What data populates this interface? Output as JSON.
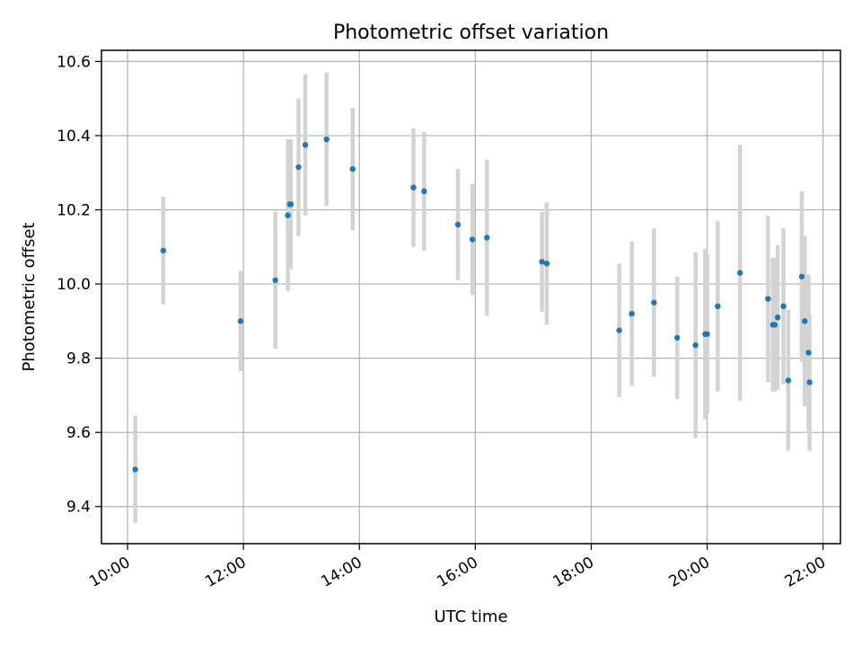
{
  "chart_data": {
    "type": "scatter",
    "title": "Photometric offset variation",
    "xlabel": "UTC time",
    "ylabel": "Photometric offset",
    "x_ticks": [
      "10:00",
      "12:00",
      "14:00",
      "16:00",
      "18:00",
      "20:00",
      "22:00"
    ],
    "y_ticks": [
      "9.4",
      "9.6",
      "9.8",
      "10.0",
      "10.2",
      "10.4",
      "10.6"
    ],
    "xlim": [
      "09:33",
      "22:18"
    ],
    "ylim": [
      9.3,
      10.63
    ],
    "grid": true,
    "legend": "none",
    "colors": {
      "points": "#1f77b4",
      "errorbars": "#d3d3d3",
      "grid": "#b0b0b0"
    },
    "points": [
      {
        "x": "10:08",
        "y": 9.5,
        "yerr": 0.145
      },
      {
        "x": "10:37",
        "y": 10.09,
        "yerr": 0.145
      },
      {
        "x": "11:57",
        "y": 9.9,
        "yerr": 0.135
      },
      {
        "x": "12:33",
        "y": 10.01,
        "yerr": 0.185
      },
      {
        "x": "12:46",
        "y": 10.185,
        "yerr": 0.205
      },
      {
        "x": "12:48",
        "y": 10.215,
        "yerr": 0.175
      },
      {
        "x": "12:49",
        "y": 10.215,
        "yerr": 0.175
      },
      {
        "x": "12:57",
        "y": 10.315,
        "yerr": 0.185
      },
      {
        "x": "13:04",
        "y": 10.375,
        "yerr": 0.19
      },
      {
        "x": "13:26",
        "y": 10.39,
        "yerr": 0.18
      },
      {
        "x": "13:53",
        "y": 10.31,
        "yerr": 0.165
      },
      {
        "x": "14:56",
        "y": 10.26,
        "yerr": 0.16
      },
      {
        "x": "15:07",
        "y": 10.25,
        "yerr": 0.16
      },
      {
        "x": "15:42",
        "y": 10.16,
        "yerr": 0.15
      },
      {
        "x": "15:57",
        "y": 10.12,
        "yerr": 0.15
      },
      {
        "x": "16:12",
        "y": 10.125,
        "yerr": 0.21
      },
      {
        "x": "17:09",
        "y": 10.06,
        "yerr": 0.135
      },
      {
        "x": "17:14",
        "y": 10.055,
        "yerr": 0.165
      },
      {
        "x": "18:29",
        "y": 9.875,
        "yerr": 0.18
      },
      {
        "x": "18:42",
        "y": 9.92,
        "yerr": 0.195
      },
      {
        "x": "19:05",
        "y": 9.95,
        "yerr": 0.2
      },
      {
        "x": "19:29",
        "y": 9.855,
        "yerr": 0.165
      },
      {
        "x": "19:48",
        "y": 9.835,
        "yerr": 0.25
      },
      {
        "x": "19:58",
        "y": 9.865,
        "yerr": 0.23
      },
      {
        "x": "20:00",
        "y": 9.865,
        "yerr": 0.215
      },
      {
        "x": "20:11",
        "y": 9.94,
        "yerr": 0.23
      },
      {
        "x": "20:34",
        "y": 10.03,
        "yerr": 0.345
      },
      {
        "x": "21:03",
        "y": 9.96,
        "yerr": 0.225
      },
      {
        "x": "21:08",
        "y": 9.89,
        "yerr": 0.18
      },
      {
        "x": "21:10",
        "y": 9.89,
        "yerr": 0.18
      },
      {
        "x": "21:13",
        "y": 9.91,
        "yerr": 0.195
      },
      {
        "x": "21:19",
        "y": 9.94,
        "yerr": 0.21
      },
      {
        "x": "21:24",
        "y": 9.74,
        "yerr": 0.19
      },
      {
        "x": "21:38",
        "y": 10.02,
        "yerr": 0.23
      },
      {
        "x": "21:41",
        "y": 9.9,
        "yerr": 0.23
      },
      {
        "x": "21:45",
        "y": 9.815,
        "yerr": 0.21
      },
      {
        "x": "21:46",
        "y": 9.735,
        "yerr": 0.185
      }
    ]
  }
}
